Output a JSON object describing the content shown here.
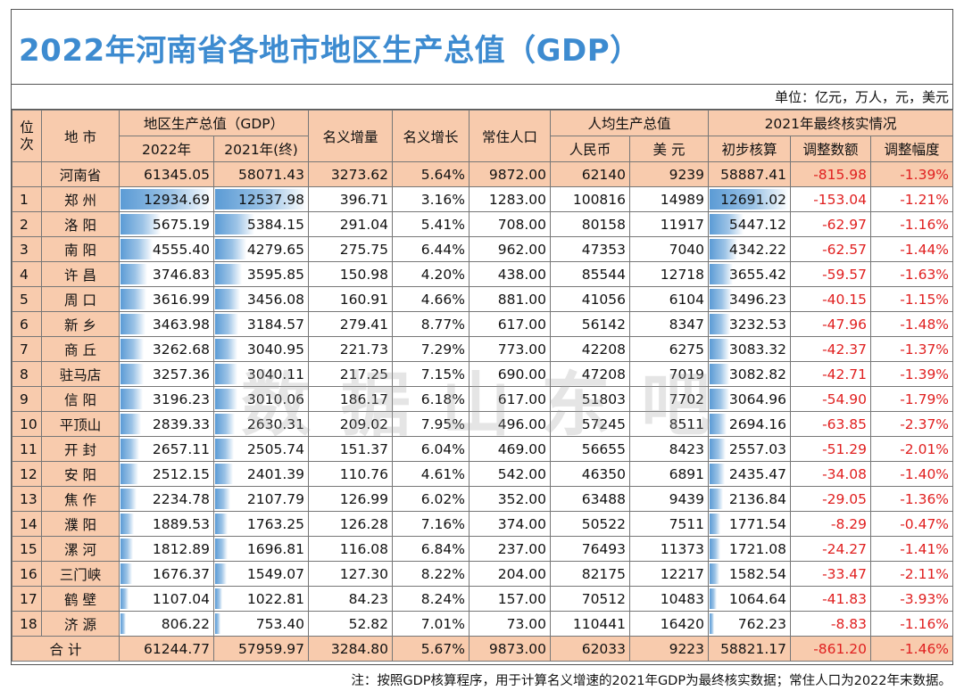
{
  "title": "2022年河南省各地市地区生产总值（GDP）",
  "units": "单位：亿元，万人，元，美元",
  "headers": {
    "rank": "位次",
    "city": "地 市",
    "gdp_group": "地区生产总值（GDP）",
    "gdp2022": "2022年",
    "gdp2021": "2021年(终)",
    "nominal_inc": "名义增量",
    "nominal_growth": "名义增长",
    "population": "常住人口",
    "percap_group": "人均生产总值",
    "rmb": "人民币",
    "usd": "美 元",
    "final_group": "2021年最终核实情况",
    "initial": "初步核算",
    "adj_amount": "调整数额",
    "adj_rate": "调整幅度"
  },
  "province": {
    "name": "河南省",
    "gdp2022": "61345.05",
    "gdp2021": "58071.43",
    "inc": "3273.62",
    "growth": "5.64%",
    "pop": "9872.00",
    "rmb": "62140",
    "usd": "9239",
    "initial": "58887.41",
    "adj": "-815.98",
    "rate": "-1.39%"
  },
  "rows": [
    {
      "rank": "1",
      "city": "郑 州",
      "gdp2022": "12934.69",
      "gdp2021": "12537.98",
      "inc": "396.71",
      "growth": "3.16%",
      "pop": "1283.00",
      "rmb": "100816",
      "usd": "14989",
      "initial": "12691.02",
      "adj": "-153.04",
      "rate": "-1.21%"
    },
    {
      "rank": "2",
      "city": "洛 阳",
      "gdp2022": "5675.19",
      "gdp2021": "5384.15",
      "inc": "291.04",
      "growth": "5.41%",
      "pop": "708.00",
      "rmb": "80158",
      "usd": "11917",
      "initial": "5447.12",
      "adj": "-62.97",
      "rate": "-1.16%"
    },
    {
      "rank": "3",
      "city": "南 阳",
      "gdp2022": "4555.40",
      "gdp2021": "4279.65",
      "inc": "275.75",
      "growth": "6.44%",
      "pop": "962.00",
      "rmb": "47353",
      "usd": "7040",
      "initial": "4342.22",
      "adj": "-62.57",
      "rate": "-1.44%"
    },
    {
      "rank": "4",
      "city": "许 昌",
      "gdp2022": "3746.83",
      "gdp2021": "3595.85",
      "inc": "150.98",
      "growth": "4.20%",
      "pop": "438.00",
      "rmb": "85544",
      "usd": "12718",
      "initial": "3655.42",
      "adj": "-59.57",
      "rate": "-1.63%"
    },
    {
      "rank": "5",
      "city": "周 口",
      "gdp2022": "3616.99",
      "gdp2021": "3456.08",
      "inc": "160.91",
      "growth": "4.66%",
      "pop": "881.00",
      "rmb": "41056",
      "usd": "6104",
      "initial": "3496.23",
      "adj": "-40.15",
      "rate": "-1.15%"
    },
    {
      "rank": "6",
      "city": "新 乡",
      "gdp2022": "3463.98",
      "gdp2021": "3184.57",
      "inc": "279.41",
      "growth": "8.77%",
      "pop": "617.00",
      "rmb": "56142",
      "usd": "8347",
      "initial": "3232.53",
      "adj": "-47.96",
      "rate": "-1.48%"
    },
    {
      "rank": "7",
      "city": "商 丘",
      "gdp2022": "3262.68",
      "gdp2021": "3040.95",
      "inc": "221.73",
      "growth": "7.29%",
      "pop": "773.00",
      "rmb": "42208",
      "usd": "6275",
      "initial": "3083.32",
      "adj": "-42.37",
      "rate": "-1.37%"
    },
    {
      "rank": "8",
      "city": "驻马店",
      "gdp2022": "3257.36",
      "gdp2021": "3040.11",
      "inc": "217.25",
      "growth": "7.15%",
      "pop": "690.00",
      "rmb": "47208",
      "usd": "7019",
      "initial": "3082.82",
      "adj": "-42.71",
      "rate": "-1.39%"
    },
    {
      "rank": "9",
      "city": "信 阳",
      "gdp2022": "3196.23",
      "gdp2021": "3010.06",
      "inc": "186.17",
      "growth": "6.18%",
      "pop": "617.00",
      "rmb": "51803",
      "usd": "7702",
      "initial": "3064.96",
      "adj": "-54.90",
      "rate": "-1.79%"
    },
    {
      "rank": "10",
      "city": "平顶山",
      "gdp2022": "2839.33",
      "gdp2021": "2630.31",
      "inc": "209.02",
      "growth": "7.95%",
      "pop": "496.00",
      "rmb": "57245",
      "usd": "8511",
      "initial": "2694.16",
      "adj": "-63.85",
      "rate": "-2.37%"
    },
    {
      "rank": "11",
      "city": "开 封",
      "gdp2022": "2657.11",
      "gdp2021": "2505.74",
      "inc": "151.37",
      "growth": "6.04%",
      "pop": "469.00",
      "rmb": "56655",
      "usd": "8423",
      "initial": "2557.03",
      "adj": "-51.29",
      "rate": "-2.01%"
    },
    {
      "rank": "12",
      "city": "安 阳",
      "gdp2022": "2512.15",
      "gdp2021": "2401.39",
      "inc": "110.76",
      "growth": "4.61%",
      "pop": "542.00",
      "rmb": "46350",
      "usd": "6891",
      "initial": "2435.47",
      "adj": "-34.08",
      "rate": "-1.40%"
    },
    {
      "rank": "13",
      "city": "焦 作",
      "gdp2022": "2234.78",
      "gdp2021": "2107.79",
      "inc": "126.99",
      "growth": "6.02%",
      "pop": "352.00",
      "rmb": "63488",
      "usd": "9439",
      "initial": "2136.84",
      "adj": "-29.05",
      "rate": "-1.36%"
    },
    {
      "rank": "14",
      "city": "濮 阳",
      "gdp2022": "1889.53",
      "gdp2021": "1763.25",
      "inc": "126.28",
      "growth": "7.16%",
      "pop": "374.00",
      "rmb": "50522",
      "usd": "7511",
      "initial": "1771.54",
      "adj": "-8.29",
      "rate": "-0.47%"
    },
    {
      "rank": "15",
      "city": "漯 河",
      "gdp2022": "1812.89",
      "gdp2021": "1696.81",
      "inc": "116.08",
      "growth": "6.84%",
      "pop": "237.00",
      "rmb": "76493",
      "usd": "11373",
      "initial": "1721.08",
      "adj": "-24.27",
      "rate": "-1.41%"
    },
    {
      "rank": "16",
      "city": "三门峡",
      "gdp2022": "1676.37",
      "gdp2021": "1549.07",
      "inc": "127.30",
      "growth": "8.22%",
      "pop": "204.00",
      "rmb": "82175",
      "usd": "12217",
      "initial": "1582.54",
      "adj": "-33.47",
      "rate": "-2.11%"
    },
    {
      "rank": "17",
      "city": "鹤 壁",
      "gdp2022": "1107.04",
      "gdp2021": "1022.81",
      "inc": "84.23",
      "growth": "8.24%",
      "pop": "157.00",
      "rmb": "70512",
      "usd": "10483",
      "initial": "1064.64",
      "adj": "-41.83",
      "rate": "-3.93%"
    },
    {
      "rank": "18",
      "city": "济 源",
      "gdp2022": "806.22",
      "gdp2021": "753.40",
      "inc": "52.82",
      "growth": "7.01%",
      "pop": "73.00",
      "rmb": "110441",
      "usd": "16420",
      "initial": "762.23",
      "adj": "-8.83",
      "rate": "-1.16%"
    }
  ],
  "total": {
    "label": "合 计",
    "gdp2022": "61244.77",
    "gdp2021": "57959.97",
    "inc": "3284.80",
    "growth": "5.67%",
    "pop": "9873.00",
    "rmb": "62033",
    "usd": "9223",
    "initial": "58821.17",
    "adj": "-861.20",
    "rate": "-1.46%"
  },
  "note": "注：按照GDP核算程序，用于计算名义增速的2021年GDP为最终核实数据；常住人口为2022年末数据。",
  "watermark": "数据山东吧",
  "bar_max": {
    "gdp2022": 12934.69,
    "gdp2021": 12537.98,
    "initial": 12691.02
  },
  "colors": {
    "header_bg": "#f8cbad",
    "title_blue": "#3d8bd0",
    "bar_blue": "#5b9bd5",
    "negative_red": "#e02020"
  }
}
